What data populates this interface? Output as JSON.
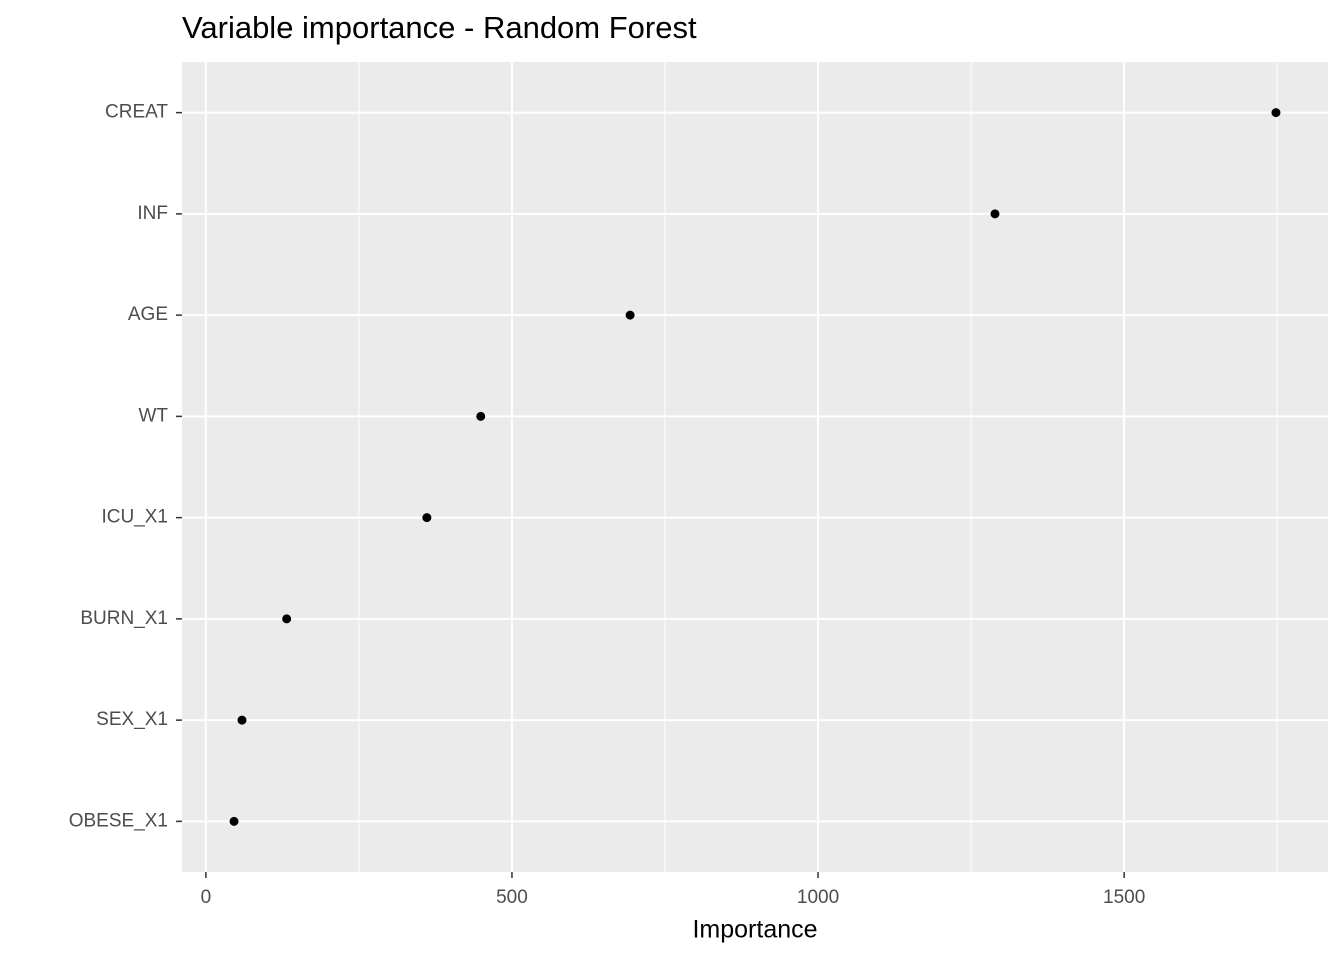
{
  "chart_data": {
    "type": "dot",
    "title": "Variable importance - Random Forest",
    "x_label": "Importance",
    "categories": [
      "CREAT",
      "INF",
      "AGE",
      "WT",
      "ICU_X1",
      "BURN_X1",
      "SEX_X1",
      "OBESE_X1"
    ],
    "values": [
      1748,
      1289,
      693,
      449,
      361,
      132,
      59,
      46
    ],
    "color": "#000000",
    "xlim": [
      -39,
      1833
    ],
    "xticks": [
      0,
      500,
      1000,
      1500
    ],
    "x_minor_grid": [
      250,
      750,
      1250,
      1750
    ],
    "grid": true
  }
}
